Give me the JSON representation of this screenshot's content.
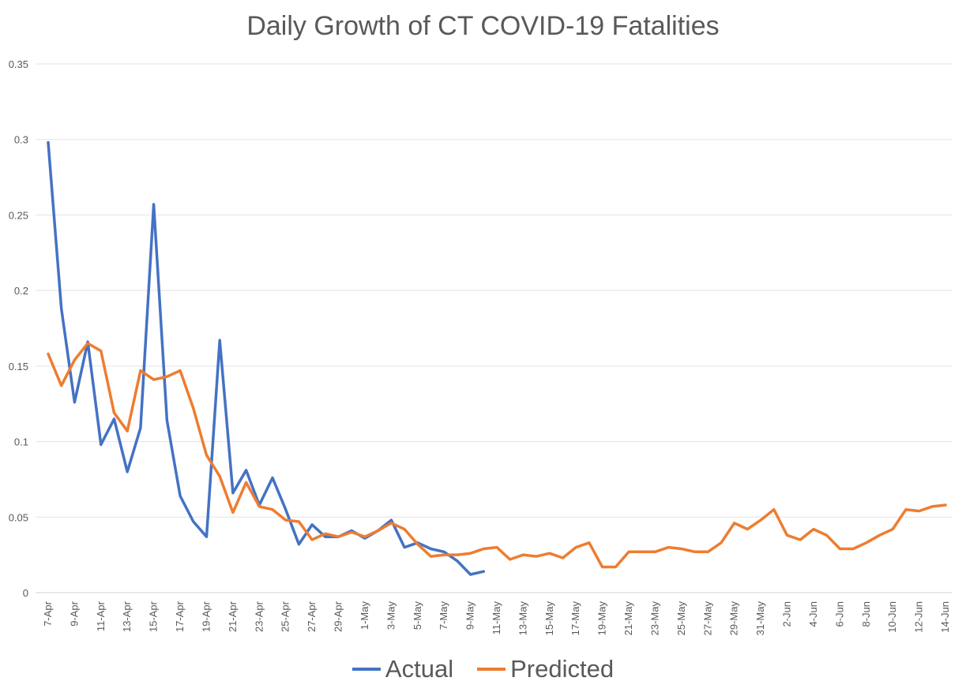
{
  "chart_data": {
    "type": "line",
    "title": "Daily Growth of CT COVID-19 Fatalities",
    "xlabel": "",
    "ylabel": "",
    "ylim": [
      0,
      0.35
    ],
    "yticks": [
      "0",
      "0.05",
      "0.1",
      "0.15",
      "0.2",
      "0.25",
      "0.3",
      "0.35"
    ],
    "grid": true,
    "legend_position": "bottom",
    "x_tick_labels": [
      "7-Apr",
      "9-Apr",
      "11-Apr",
      "13-Apr",
      "15-Apr",
      "17-Apr",
      "19-Apr",
      "21-Apr",
      "23-Apr",
      "25-Apr",
      "27-Apr",
      "29-Apr",
      "1-May",
      "3-May",
      "5-May",
      "7-May",
      "9-May",
      "11-May",
      "13-May",
      "15-May",
      "17-May",
      "19-May",
      "21-May",
      "23-May",
      "25-May",
      "27-May",
      "29-May",
      "31-May",
      "2-Jun",
      "4-Jun",
      "6-Jun",
      "8-Jun",
      "10-Jun",
      "12-Jun",
      "14-Jun"
    ],
    "x_start": "7-Apr",
    "series": [
      {
        "name": "Actual",
        "color": "#4472C4",
        "values": [
          0.298,
          0.188,
          0.126,
          0.166,
          0.098,
          0.115,
          0.08,
          0.109,
          0.257,
          0.114,
          0.064,
          0.047,
          0.037,
          0.167,
          0.066,
          0.081,
          0.058,
          0.076,
          0.055,
          0.032,
          0.045,
          0.037,
          0.037,
          0.041,
          0.036,
          0.041,
          0.048,
          0.03,
          0.033,
          0.029,
          0.027,
          0.021,
          0.012,
          0.014
        ]
      },
      {
        "name": "Predicted",
        "color": "#ED7D31",
        "values": [
          0.158,
          0.137,
          0.154,
          0.165,
          0.16,
          0.119,
          0.107,
          0.147,
          0.141,
          0.143,
          0.147,
          0.122,
          0.091,
          0.077,
          0.053,
          0.073,
          0.057,
          0.055,
          0.048,
          0.047,
          0.035,
          0.039,
          0.037,
          0.04,
          0.037,
          0.041,
          0.046,
          0.042,
          0.032,
          0.024,
          0.025,
          0.025,
          0.026,
          0.029,
          0.03,
          0.022,
          0.025,
          0.024,
          0.026,
          0.023,
          0.03,
          0.033,
          0.017,
          0.017,
          0.027,
          0.027,
          0.027,
          0.03,
          0.029,
          0.027,
          0.027,
          0.033,
          0.046,
          0.042,
          0.048,
          0.055,
          0.038,
          0.035,
          0.042,
          0.038,
          0.029,
          0.029,
          0.033,
          0.038,
          0.042,
          0.055,
          0.054,
          0.057,
          0.058
        ]
      }
    ]
  }
}
